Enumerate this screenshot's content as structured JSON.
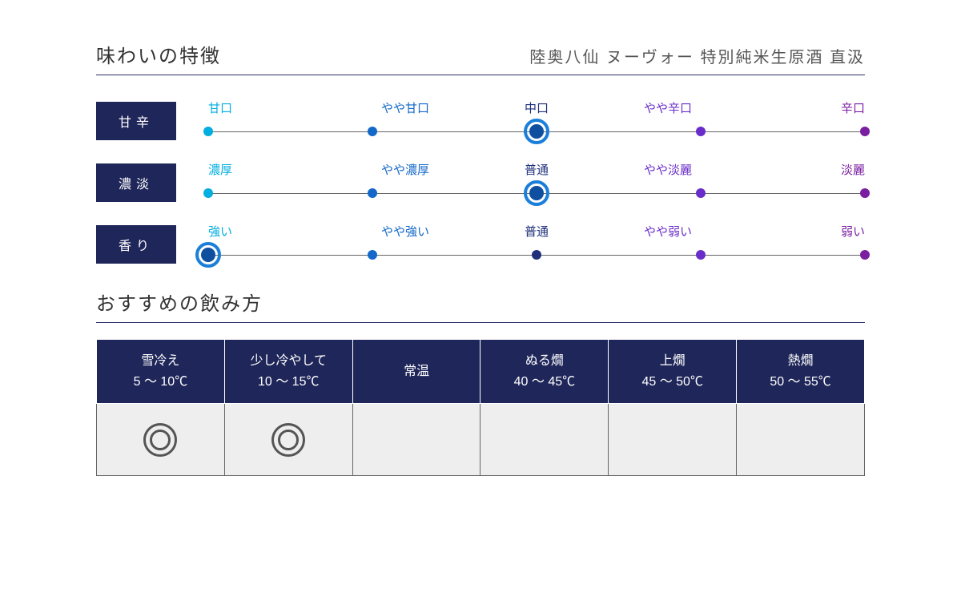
{
  "section_title": "味わいの特徴",
  "product_title": "陸奥八仙 ヌーヴォー 特別純米生原酒 直汲",
  "recommend_title": "おすすめの飲み方",
  "colors": {
    "label_bg": "#1f2659",
    "dot_colors": [
      "#00aee0",
      "#1368c9",
      "#1f2f7a",
      "#6a2dc9",
      "#7b1fa2"
    ],
    "sel_ring": "#1b7fd9",
    "sel_fill": "#0e4fa0",
    "grid_border": "#666666",
    "cell_bg": "#eeeeee",
    "circle": "#555555"
  },
  "pos_pct": [
    0,
    25,
    50,
    75,
    100
  ],
  "taste": [
    {
      "label": "甘辛",
      "options": [
        "甘口",
        "やや甘口",
        "中口",
        "やや辛口",
        "辛口"
      ],
      "selected": 2
    },
    {
      "label": "濃淡",
      "options": [
        "濃厚",
        "やや濃厚",
        "普通",
        "やや淡麗",
        "淡麗"
      ],
      "selected": 2
    },
    {
      "label": "香り",
      "options": [
        "強い",
        "やや強い",
        "普通",
        "やや弱い",
        "弱い"
      ],
      "selected": 0
    }
  ],
  "recommend": {
    "columns": [
      {
        "name": "雪冷え",
        "range": "5 ～ 10℃"
      },
      {
        "name": "少し冷やして",
        "range": "10 ～ 15℃"
      },
      {
        "name": "常温",
        "range": ""
      },
      {
        "name": "ぬる燗",
        "range": "40 ～ 45℃"
      },
      {
        "name": "上燗",
        "range": "45 ～ 50℃"
      },
      {
        "name": "熱燗",
        "range": "50 ～ 55℃"
      }
    ],
    "marks": [
      "◎",
      "◎",
      "",
      "",
      "",
      ""
    ]
  }
}
